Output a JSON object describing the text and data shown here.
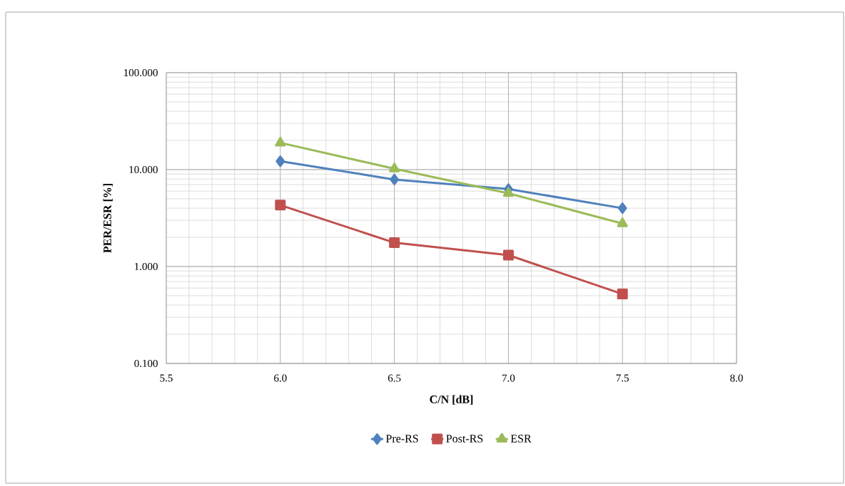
{
  "chart_data": {
    "type": "line",
    "xlabel": "C/N [dB]",
    "ylabel": "PER/ESR [%]",
    "x": [
      6.0,
      6.5,
      7.0,
      7.5
    ],
    "series": [
      {
        "name": "Pre-RS",
        "color": "#4f81bd",
        "marker": "diamond",
        "values": [
          12.2,
          7.9,
          6.3,
          4.0
        ]
      },
      {
        "name": "Post-RS",
        "color": "#c0504d",
        "marker": "square",
        "values": [
          4.3,
          1.76,
          1.31,
          0.52
        ]
      },
      {
        "name": "ESR",
        "color": "#9bbb59",
        "marker": "triangle",
        "values": [
          18.9,
          10.2,
          5.7,
          2.77
        ]
      }
    ],
    "xlim": [
      5.5,
      8.0
    ],
    "xticks": [
      {
        "value": 5.5,
        "label": "5.5"
      },
      {
        "value": 6.0,
        "label": "6.0"
      },
      {
        "value": 6.5,
        "label": "6.5"
      },
      {
        "value": 7.0,
        "label": "7.0"
      },
      {
        "value": 7.5,
        "label": "7.5"
      },
      {
        "value": 8.0,
        "label": "8.0"
      }
    ],
    "ylim": [
      0.1,
      100
    ],
    "yticks": [
      {
        "value": 0.1,
        "label": "0.100"
      },
      {
        "value": 1,
        "label": "1.000"
      },
      {
        "value": 10,
        "label": "10.000"
      },
      {
        "value": 100,
        "label": "100.000"
      }
    ],
    "log": "y",
    "grid": true,
    "legend": "bottom"
  }
}
